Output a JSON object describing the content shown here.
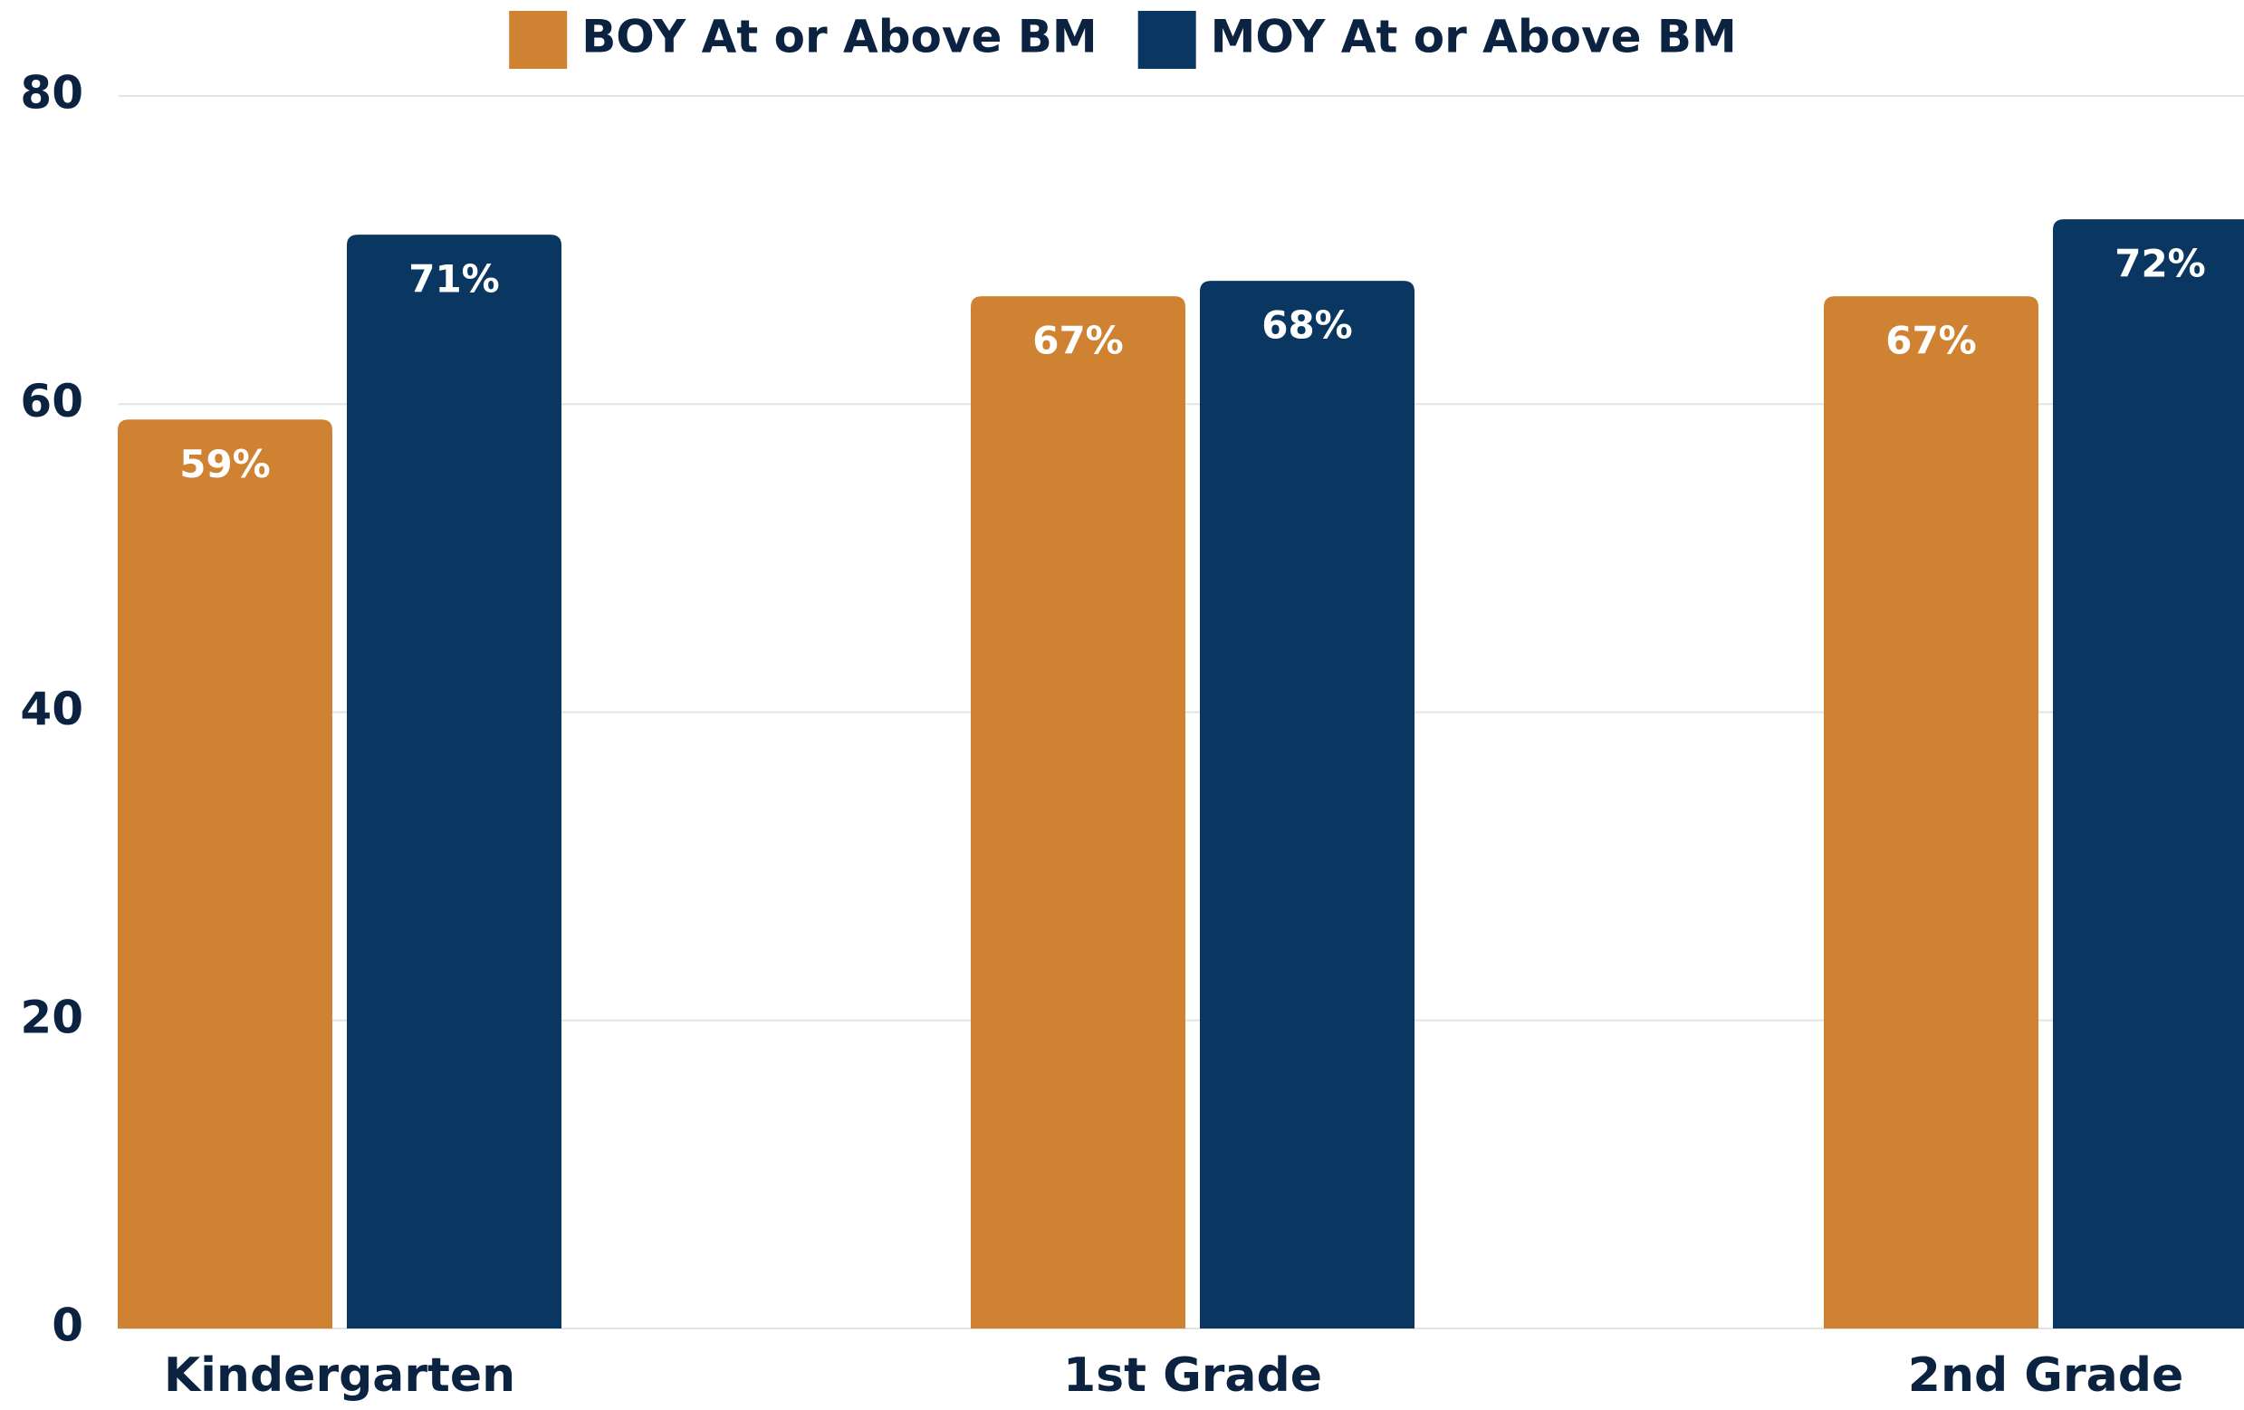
{
  "chart_data": {
    "type": "bar",
    "categories": [
      "Kindergarten",
      "1st Grade",
      "2nd Grade"
    ],
    "series": [
      {
        "name": "BOY At or Above BM",
        "color": "#d08233",
        "values": [
          59,
          67,
          67
        ],
        "value_labels": [
          "59%",
          "67%",
          "67%"
        ]
      },
      {
        "name": "MOY At or Above BM",
        "color": "#0a3761",
        "values": [
          71,
          68,
          72
        ],
        "value_labels": [
          "71%",
          "68%",
          "72%"
        ]
      }
    ],
    "ylim": [
      0,
      80
    ],
    "yticks": [
      0,
      20,
      40,
      60,
      80
    ],
    "grid": true,
    "legend": "top"
  }
}
